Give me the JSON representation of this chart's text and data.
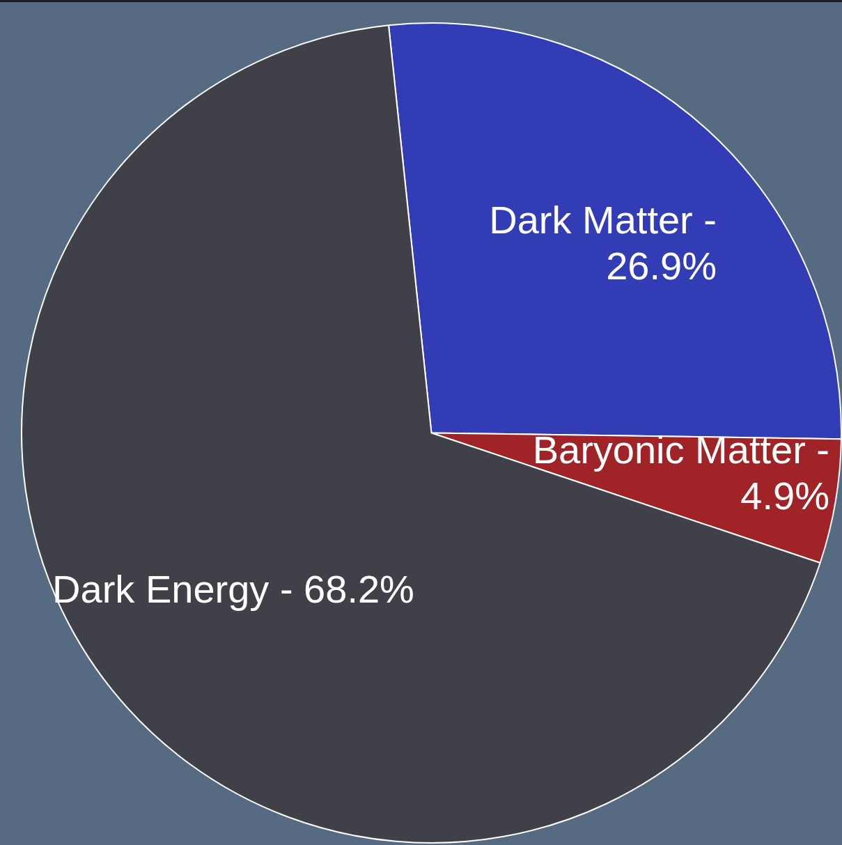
{
  "chart_data": {
    "type": "pie",
    "categories": [
      "Dark Matter -",
      "Baryonic Matter -",
      "Dark Energy -"
    ],
    "values": [
      26.9,
      4.9,
      68.2
    ],
    "value_labels": [
      "26.9%",
      "4.9%",
      "68.2%"
    ],
    "colors": [
      "#323cb5",
      "#a02427",
      "#404048"
    ],
    "legend": false
  }
}
